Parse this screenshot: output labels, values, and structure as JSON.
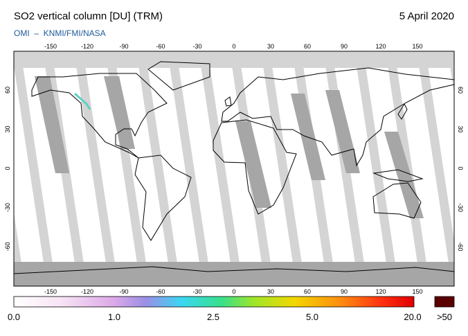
{
  "header": {
    "title": "SO2 vertical column [DU] (TRM)",
    "date": "5 April 2020",
    "credit": "OMI  –  KNMI/FMI/NASA"
  },
  "map": {
    "lon_ticks": [
      "-150",
      "-120",
      "-90",
      "-60",
      "-30",
      "0",
      "30",
      "60",
      "90",
      "120",
      "150"
    ],
    "lat_ticks": [
      "60",
      "30",
      "0",
      "-30",
      "-60"
    ]
  },
  "colorbar": {
    "labels": [
      "0.0",
      "1.0",
      "2.5",
      "5.0",
      "20.0"
    ],
    "overflow": ">50"
  }
}
